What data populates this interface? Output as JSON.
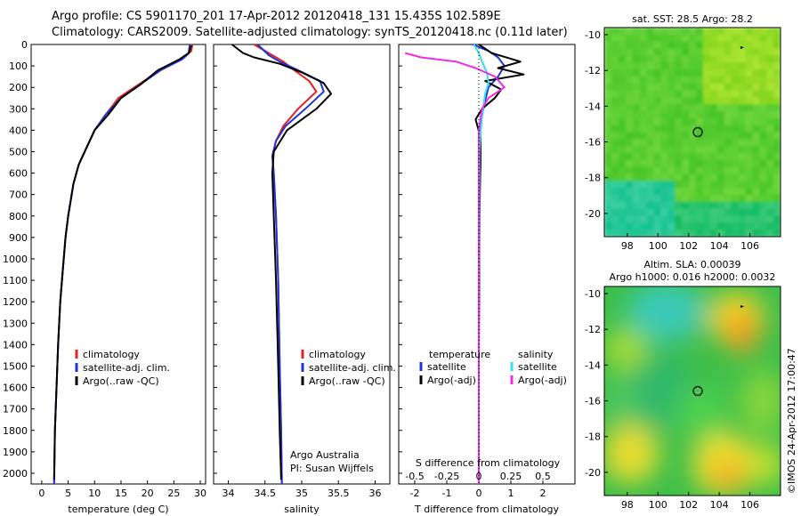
{
  "title_line1": "Argo profile: CS 5901170_201 17-Apr-2012 20120418_131 15.435S 102.589E",
  "title_line2": "Climatology: CARS2009. Satellite-adjusted climatology: synTS_20120418.nc (0.11d later)",
  "footer": {
    "credit_line1": "Argo Australia",
    "credit_line2": "PI: Susan Wijffels",
    "timestamp": "©IMOS 24-Apr-2012 17:00:47"
  },
  "colors": {
    "climatology": "#e8211b",
    "satellite": "#1f34d6",
    "argo": "#000000",
    "satellite_s": "#33e0f0",
    "argo_s": "#f02ce6"
  },
  "chart_data": [
    {
      "type": "line",
      "xlabel": "temperature (deg C)",
      "ylabel": "",
      "xlim": [
        -2,
        31
      ],
      "ylim": [
        0,
        2050
      ],
      "y_inverted": true,
      "x_ticks": [
        0,
        5,
        10,
        15,
        20,
        25,
        30
      ],
      "y_ticks": [
        0,
        100,
        200,
        300,
        400,
        500,
        600,
        700,
        800,
        900,
        1000,
        1100,
        1200,
        1300,
        1400,
        1500,
        1600,
        1700,
        1800,
        1900,
        2000
      ],
      "legend": [
        "climatology",
        "satellite-adj. clim.",
        "Argo(..raw -QC)"
      ],
      "legend_placement": "lower-center",
      "series": [
        {
          "name": "climatology",
          "color": "#e8211b",
          "x": [
            28.5,
            28.3,
            27.0,
            22.5,
            17.5,
            14.5,
            12.0,
            10.0,
            8.5,
            7.0,
            6.0,
            5.0,
            4.5,
            4.0,
            3.5,
            3.1,
            2.8,
            2.5,
            2.35
          ],
          "y": [
            0,
            30,
            60,
            120,
            200,
            250,
            330,
            400,
            480,
            560,
            650,
            800,
            900,
            1050,
            1200,
            1400,
            1600,
            1800,
            2050
          ]
        },
        {
          "name": "satellite-adj. clim.",
          "color": "#1f34d6",
          "x": [
            28.0,
            27.8,
            26.5,
            22.5,
            19.0,
            15.0,
            12.0,
            10.0,
            8.5,
            7.0,
            6.0,
            5.0,
            4.5,
            4.0,
            3.5,
            3.1,
            2.8,
            2.5,
            2.35
          ],
          "y": [
            0,
            40,
            70,
            120,
            180,
            250,
            330,
            400,
            480,
            560,
            650,
            800,
            900,
            1050,
            1200,
            1400,
            1600,
            1800,
            2050
          ]
        },
        {
          "name": "Argo(..raw -QC)",
          "color": "#000000",
          "x": [
            28.3,
            27.8,
            26.0,
            22.0,
            18.5,
            15.0,
            12.5,
            10.0,
            8.5,
            7.0,
            6.0,
            5.0,
            4.5,
            4.0,
            3.5,
            3.1,
            2.8,
            2.5,
            2.35
          ],
          "y": [
            5,
            40,
            70,
            120,
            190,
            250,
            330,
            400,
            480,
            560,
            650,
            800,
            900,
            1050,
            1200,
            1400,
            1600,
            1800,
            2030
          ]
        }
      ]
    },
    {
      "type": "line",
      "xlabel": "salinity",
      "ylabel": "",
      "xlim": [
        33.8,
        36.2
      ],
      "ylim": [
        0,
        2050
      ],
      "y_inverted": true,
      "x_ticks": [
        34,
        34.5,
        35,
        35.5,
        36
      ],
      "legend": [
        "climatology",
        "satellite-adj. clim.",
        "Argo(..raw -QC)"
      ],
      "legend_placement": "lower-center",
      "series": [
        {
          "name": "climatology",
          "color": "#e8211b",
          "x": [
            34.35,
            34.6,
            34.75,
            34.9,
            35.1,
            35.2,
            34.95,
            34.75,
            34.65,
            34.6,
            34.62,
            34.65,
            34.68,
            34.7,
            34.72,
            34.73
          ],
          "y": [
            0,
            50,
            80,
            120,
            170,
            220,
            300,
            380,
            450,
            520,
            600,
            800,
            1100,
            1500,
            1800,
            2050
          ]
        },
        {
          "name": "satellite-adj. clim.",
          "color": "#1f34d6",
          "x": [
            34.4,
            34.55,
            34.7,
            34.95,
            35.25,
            35.3,
            35.05,
            34.78,
            34.65,
            34.6,
            34.62,
            34.65,
            34.68,
            34.7,
            34.72,
            34.73
          ],
          "y": [
            0,
            50,
            80,
            120,
            170,
            220,
            300,
            380,
            450,
            520,
            600,
            800,
            1100,
            1500,
            1800,
            2050
          ]
        },
        {
          "name": "Argo(..raw -QC)",
          "color": "#000000",
          "x": [
            34.05,
            34.2,
            34.35,
            34.7,
            35.0,
            35.3,
            35.4,
            35.2,
            34.8,
            34.62,
            34.6,
            34.62,
            34.65,
            34.68,
            34.7,
            34.72
          ],
          "y": [
            0,
            40,
            60,
            90,
            130,
            180,
            230,
            300,
            400,
            500,
            600,
            800,
            1100,
            1500,
            1800,
            2030
          ]
        }
      ]
    },
    {
      "type": "line",
      "xlabel": "T difference from climatology",
      "x2label": "S difference from climatology",
      "xlim": [
        -2.5,
        3
      ],
      "x2lim": [
        -0.625,
        0.75
      ],
      "ylim": [
        0,
        2050
      ],
      "y_inverted": true,
      "x_ticks": [
        -2,
        -1,
        0,
        1,
        2
      ],
      "x2_ticks": [
        -0.5,
        -0.25,
        0,
        0.25,
        0.5
      ],
      "legend_left_title": "temperature",
      "legend_right_title": "salinity",
      "legend": [
        "satellite",
        "Argo(-adj)",
        "satellite",
        "Argo(-adj)"
      ],
      "legend_placement": "lower-center",
      "series": [
        {
          "name": "satellite",
          "color": "#1f34d6",
          "x": [
            -0.2,
            0.3,
            0.6,
            0.8,
            0.6,
            0.3,
            0.2,
            0.1,
            0.05,
            0.05,
            0.05,
            0.02,
            0.01,
            0.0,
            0.0
          ],
          "y": [
            0,
            30,
            60,
            100,
            150,
            200,
            260,
            330,
            400,
            480,
            560,
            700,
            1000,
            1500,
            2050
          ]
        },
        {
          "name": "Argo(-adj)",
          "color": "#000000",
          "x": [
            0.0,
            0.4,
            1.3,
            0.6,
            1.4,
            0.2,
            0.7,
            0.5,
            0.1,
            -0.1,
            0.05,
            0.05,
            0.02,
            0.0,
            0.0
          ],
          "y": [
            0,
            40,
            80,
            110,
            140,
            170,
            210,
            250,
            300,
            350,
            430,
            560,
            800,
            1400,
            2050
          ]
        },
        {
          "name": "satellite",
          "color": "#33e0f0",
          "x": [
            -0.15,
            0.0,
            0.1,
            0.25,
            0.3,
            0.2,
            0.15,
            0.1,
            0.05,
            0.02,
            0.02,
            0.01,
            0.0,
            0.0
          ],
          "y": [
            0,
            40,
            80,
            130,
            180,
            230,
            280,
            340,
            420,
            500,
            600,
            800,
            1200,
            2050
          ]
        },
        {
          "name": "Argo(-adj)",
          "color": "#f02ce6",
          "x": [
            -2.3,
            -1.8,
            -0.7,
            -0.1,
            0.5,
            0.8,
            0.3,
            0.1,
            0.0,
            0.0,
            0.0
          ],
          "y": [
            40,
            60,
            80,
            110,
            150,
            200,
            250,
            300,
            400,
            600,
            2050
          ]
        }
      ]
    },
    {
      "type": "heatmap",
      "title": "sat. SST: 28.5  Argo: 28.2",
      "xlim": [
        96.5,
        108
      ],
      "ylim": [
        -21.3,
        -9.6
      ],
      "x_ticks": [
        98,
        100,
        102,
        104,
        106
      ],
      "y_ticks": [
        -10,
        -12,
        -14,
        -16,
        -18,
        -20
      ],
      "marker": {
        "lon": 102.6,
        "lat": -15.45
      }
    },
    {
      "type": "heatmap",
      "title": "Altim. SLA: 0.00039",
      "subtitle": "Argo h1000: 0.016 h2000: 0.0032",
      "xlim": [
        96.5,
        108
      ],
      "ylim": [
        -21.3,
        -9.6
      ],
      "x_ticks": [
        98,
        100,
        102,
        104,
        106
      ],
      "y_ticks": [
        -10,
        -12,
        -14,
        -16,
        -18,
        -20
      ],
      "marker": {
        "lon": 102.6,
        "lat": -15.45
      }
    }
  ]
}
